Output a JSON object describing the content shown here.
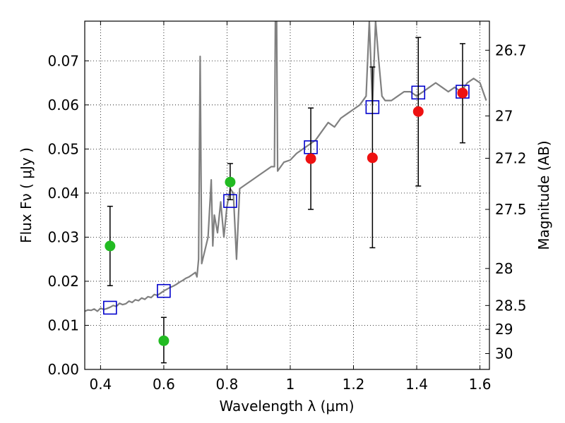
{
  "chart_data": {
    "type": "scatter",
    "xlabel": "Wavelength  λ (μm)",
    "ylabel": "Flux  Fν  ( μJy )",
    "ylabel_right": "Magnitude (AB)",
    "xlim": [
      0.35,
      1.63
    ],
    "ylim": [
      0.0,
      0.079
    ],
    "grid": true,
    "x_ticks": [
      {
        "value": 0.4,
        "label": "0.4"
      },
      {
        "value": 0.6,
        "label": "0.6"
      },
      {
        "value": 0.8,
        "label": "0.8"
      },
      {
        "value": 1.0,
        "label": "1"
      },
      {
        "value": 1.2,
        "label": "1.2"
      },
      {
        "value": 1.4,
        "label": "1.4"
      },
      {
        "value": 1.6,
        "label": "1.6"
      }
    ],
    "y_ticks": [
      {
        "value": 0.0,
        "label": "0.00"
      },
      {
        "value": 0.01,
        "label": "0.01"
      },
      {
        "value": 0.02,
        "label": "0.02"
      },
      {
        "value": 0.03,
        "label": "0.03"
      },
      {
        "value": 0.04,
        "label": "0.04"
      },
      {
        "value": 0.05,
        "label": "0.05"
      },
      {
        "value": 0.06,
        "label": "0.06"
      },
      {
        "value": 0.07,
        "label": "0.07"
      }
    ],
    "y_right_ticks": [
      {
        "flux": 0.0724,
        "label": "26.7"
      },
      {
        "flux": 0.0575,
        "label": "27"
      },
      {
        "flux": 0.0479,
        "label": "27.2"
      },
      {
        "flux": 0.0363,
        "label": "27.5"
      },
      {
        "flux": 0.0229,
        "label": "28"
      },
      {
        "flux": 0.0145,
        "label": "28.5"
      },
      {
        "flux": 0.0091,
        "label": "29"
      },
      {
        "flux": 0.0036,
        "label": "30"
      }
    ],
    "series": [
      {
        "kind": "line",
        "color": "#808080",
        "x": [
          0.35,
          0.36,
          0.37,
          0.38,
          0.39,
          0.4,
          0.41,
          0.42,
          0.43,
          0.44,
          0.45,
          0.46,
          0.47,
          0.48,
          0.49,
          0.5,
          0.51,
          0.52,
          0.53,
          0.54,
          0.55,
          0.56,
          0.57,
          0.58,
          0.59,
          0.6,
          0.61,
          0.62,
          0.63,
          0.64,
          0.65,
          0.66,
          0.67,
          0.68,
          0.69,
          0.7,
          0.705,
          0.71,
          0.715,
          0.72,
          0.73,
          0.74,
          0.75,
          0.755,
          0.76,
          0.77,
          0.78,
          0.79,
          0.8,
          0.81,
          0.82,
          0.83,
          0.84,
          0.86,
          0.88,
          0.9,
          0.92,
          0.94,
          0.95,
          0.953,
          0.957,
          0.96,
          0.97,
          0.98,
          1.0,
          1.02,
          1.04,
          1.06,
          1.08,
          1.1,
          1.12,
          1.14,
          1.16,
          1.18,
          1.2,
          1.22,
          1.24,
          1.25,
          1.26,
          1.27,
          1.28,
          1.29,
          1.3,
          1.32,
          1.34,
          1.36,
          1.38,
          1.4,
          1.42,
          1.44,
          1.46,
          1.48,
          1.5,
          1.52,
          1.54,
          1.56,
          1.58,
          1.6,
          1.62
        ],
        "y": [
          0.0132,
          0.0135,
          0.0134,
          0.0137,
          0.0132,
          0.0139,
          0.0136,
          0.0138,
          0.0141,
          0.0145,
          0.0143,
          0.015,
          0.0147,
          0.0149,
          0.0155,
          0.0152,
          0.0158,
          0.0156,
          0.0162,
          0.0159,
          0.0165,
          0.0163,
          0.017,
          0.0168,
          0.0173,
          0.0178,
          0.0182,
          0.0186,
          0.0189,
          0.0193,
          0.0198,
          0.0202,
          0.0207,
          0.021,
          0.0215,
          0.022,
          0.021,
          0.025,
          0.071,
          0.024,
          0.027,
          0.03,
          0.043,
          0.028,
          0.035,
          0.031,
          0.038,
          0.03,
          0.037,
          0.041,
          0.04,
          0.025,
          0.041,
          0.042,
          0.043,
          0.044,
          0.045,
          0.046,
          0.046,
          0.079,
          0.079,
          0.045,
          0.046,
          0.047,
          0.0475,
          0.049,
          0.05,
          0.051,
          0.052,
          0.054,
          0.056,
          0.055,
          0.057,
          0.058,
          0.059,
          0.06,
          0.062,
          0.079,
          0.06,
          0.079,
          0.07,
          0.062,
          0.061,
          0.061,
          0.062,
          0.063,
          0.063,
          0.062,
          0.063,
          0.064,
          0.065,
          0.064,
          0.063,
          0.064,
          0.063,
          0.065,
          0.066,
          0.065,
          0.061
        ]
      },
      {
        "kind": "open-squares",
        "color": "#0000cc",
        "x": [
          0.43,
          0.6,
          0.81,
          1.065,
          1.26,
          1.405,
          1.545
        ],
        "y": [
          0.014,
          0.0178,
          0.0382,
          0.0504,
          0.0595,
          0.0628,
          0.063
        ]
      },
      {
        "kind": "points",
        "color": "#22bb22",
        "x": [
          0.43,
          0.6,
          0.81
        ],
        "y": [
          0.028,
          0.0065,
          0.0425
        ],
        "err_low": [
          0.019,
          0.0015,
          0.0385
        ],
        "err_high": [
          0.037,
          0.0118,
          0.0467
        ]
      },
      {
        "kind": "points",
        "color": "#ee1111",
        "x": [
          1.065,
          1.26,
          1.405,
          1.545
        ],
        "y": [
          0.0478,
          0.048,
          0.0585,
          0.0627
        ],
        "err_low": [
          0.0363,
          0.0276,
          0.0416,
          0.0514
        ],
        "err_high": [
          0.0593,
          0.0686,
          0.0753,
          0.0739
        ]
      }
    ]
  }
}
